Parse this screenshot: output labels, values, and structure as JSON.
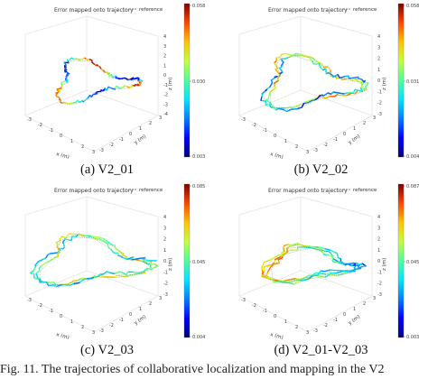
{
  "figure_caption": "Fig. 11.   The trajectories of collaborative localization and mapping in the V2",
  "colormap": [
    "#00007f",
    "#0000ff",
    "#0080ff",
    "#00e5ff",
    "#4dff9c",
    "#c3ff3c",
    "#ffc400",
    "#ff4600",
    "#800000"
  ],
  "reference_color": "#555555",
  "panels": [
    {
      "caption": "(a)  V2_01",
      "plot_title": "Error mapped onto trajectory",
      "legend_label": "reference",
      "colorbar_ticks": [
        "0.058",
        "0.030",
        "0.003"
      ],
      "z_axis_label": "z (m)",
      "x_axis_label": "x (m)",
      "y_axis_label": "y (m)",
      "z_ticks": [
        "4",
        "3",
        "2",
        "1",
        "0",
        "-1",
        "-2",
        "-3",
        "-4"
      ],
      "x_ticks": [
        "-3",
        "-2",
        "-1",
        "0",
        "1",
        "2",
        "3"
      ],
      "y_ticks": [
        "-3",
        "-2",
        "-1",
        "0",
        "1",
        "2",
        "3"
      ]
    },
    {
      "caption": "(b)  V2_02",
      "plot_title": "Error mapped onto trajectory",
      "legend_label": "reference",
      "colorbar_ticks": [
        "0.058",
        "0.031",
        "0.004"
      ],
      "z_axis_label": "z (m)",
      "x_axis_label": "x (m)",
      "y_axis_label": "y (m)",
      "z_ticks": [
        "4",
        "3",
        "2",
        "1",
        "0",
        "-1",
        "-2",
        "-3"
      ],
      "x_ticks": [
        "-3",
        "-2",
        "-1",
        "0",
        "1",
        "2",
        "3"
      ],
      "y_ticks": [
        "-3",
        "-2",
        "-1",
        "0",
        "1",
        "2",
        "3"
      ]
    },
    {
      "caption": "(c)  V2_03",
      "plot_title": "Error mapped onto trajectory",
      "legend_label": "reference",
      "colorbar_ticks": [
        "0.085",
        "0.045",
        "0.004"
      ],
      "z_axis_label": "z (m)",
      "x_axis_label": "x (m)",
      "y_axis_label": "y (m)",
      "z_ticks": [
        "4",
        "3",
        "2",
        "1",
        "0",
        "-1",
        "-2",
        "-3"
      ],
      "x_ticks": [
        "-3",
        "-2",
        "-1",
        "0",
        "1",
        "2",
        "3"
      ],
      "y_ticks": [
        "-3",
        "-2",
        "-1",
        "0",
        "1",
        "2",
        "3"
      ]
    },
    {
      "caption": "(d)  V2_01-V2_03",
      "plot_title": "Error mapped onto trajectory",
      "legend_label": "reference",
      "colorbar_ticks": [
        "0.087",
        "0.045",
        "0.003"
      ],
      "z_axis_label": "z (m)",
      "x_axis_label": "x (m)",
      "y_axis_label": "y (m)",
      "z_ticks": [
        "4",
        "3",
        "2",
        "1",
        "0",
        "-1",
        "-2",
        "-3"
      ],
      "x_ticks": [
        "-3",
        "-2",
        "-1",
        "0",
        "1",
        "2",
        "3"
      ],
      "y_ticks": [
        "-3",
        "-2",
        "-1",
        "0",
        "1",
        "2",
        "3"
      ]
    }
  ]
}
